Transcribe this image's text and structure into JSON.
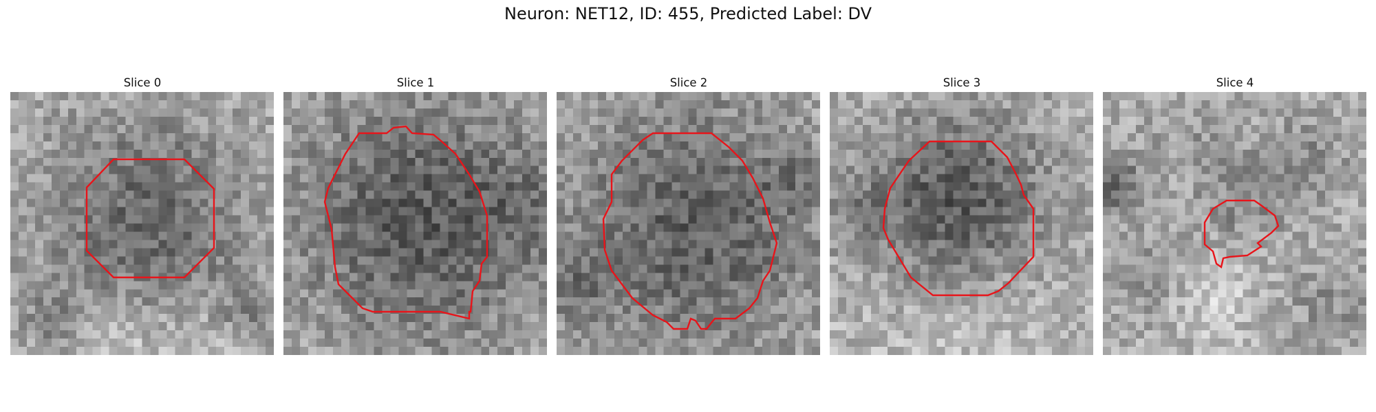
{
  "figure": {
    "title": "Neuron: NET12, ID: 455, Predicted Label: DV"
  },
  "slices": [
    {
      "title": "Slice 0"
    },
    {
      "title": "Slice 1"
    },
    {
      "title": "Slice 2"
    },
    {
      "title": "Slice 3"
    },
    {
      "title": "Slice 4"
    }
  ],
  "colors": {
    "contour": "#e8141a",
    "background": "#ffffff"
  }
}
